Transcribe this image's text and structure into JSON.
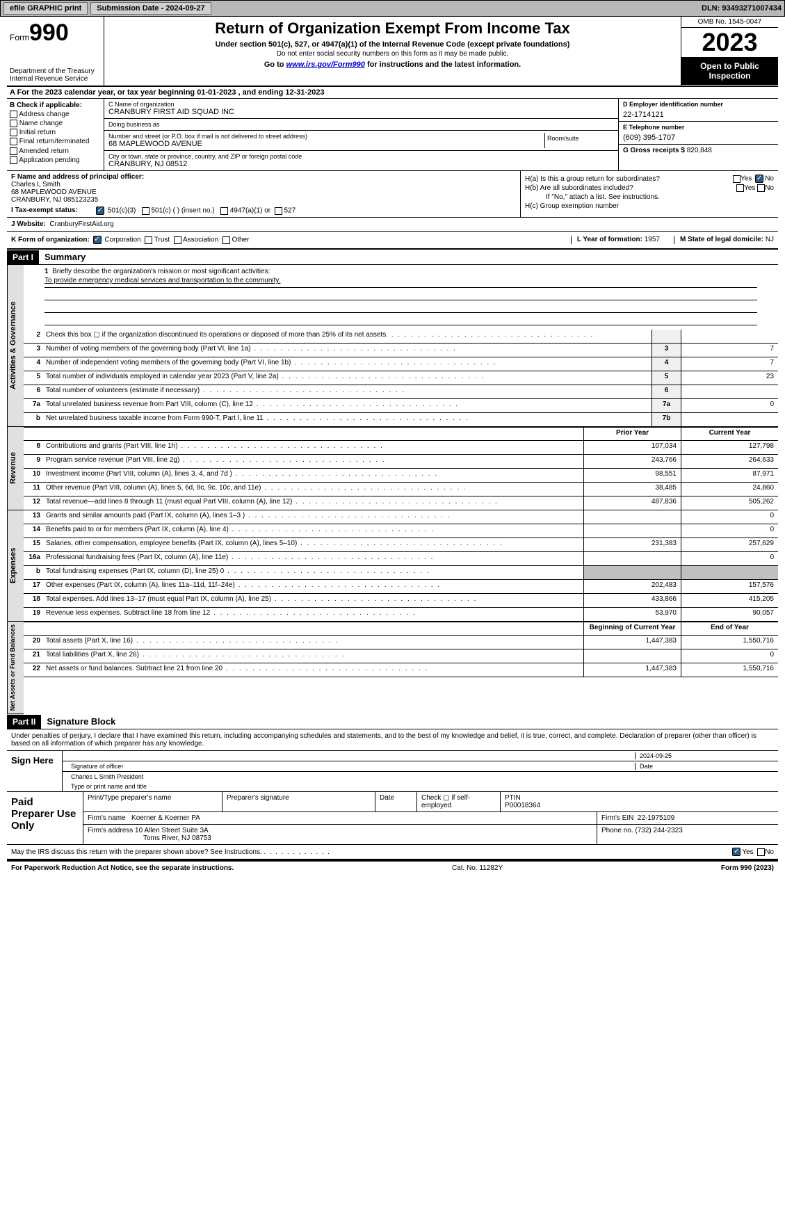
{
  "topbar": {
    "efile": "efile GRAPHIC print",
    "sub_label": "Submission Date - 2024-09-27",
    "dln": "DLN: 93493271007434"
  },
  "header": {
    "form_label": "Form",
    "form_no": "990",
    "dept": "Department of the Treasury\nInternal Revenue Service",
    "title": "Return of Organization Exempt From Income Tax",
    "subtitle": "Under section 501(c), 527, or 4947(a)(1) of the Internal Revenue Code (except private foundations)",
    "note": "Do not enter social security numbers on this form as it may be made public.",
    "goto_pre": "Go to ",
    "goto_link": "www.irs.gov/Form990",
    "goto_post": " for instructions and the latest information.",
    "omb": "OMB No. 1545-0047",
    "year": "2023",
    "open": "Open to Public Inspection"
  },
  "row_a": "A For the 2023 calendar year, or tax year beginning 01-01-2023   , and ending 12-31-2023",
  "section_b": {
    "title": "B Check if applicable:",
    "opts": [
      "Address change",
      "Name change",
      "Initial return",
      "Final return/terminated",
      "Amended return",
      "Application pending"
    ]
  },
  "section_c": {
    "name_lbl": "C Name of organization",
    "name": "CRANBURY FIRST AID SQUAD INC",
    "dba_lbl": "Doing business as",
    "dba": "",
    "addr_lbl": "Number and street (or P.O. box if mail is not delivered to street address)",
    "addr": "68 MAPLEWOOD AVENUE",
    "room_lbl": "Room/suite",
    "city_lbl": "City or town, state or province, country, and ZIP or foreign postal code",
    "city": "CRANBURY, NJ  08512"
  },
  "section_d": {
    "lbl": "D Employer identification number",
    "val": "22-1714121"
  },
  "section_e": {
    "lbl": "E Telephone number",
    "val": "(609) 395-1707"
  },
  "section_g": {
    "lbl": "G Gross receipts $",
    "val": "820,848"
  },
  "section_f": {
    "lbl": "F  Name and address of principal officer:",
    "name": "Charles L Smith",
    "addr1": "68 MAPLEWOOD AVENUE",
    "addr2": "CRANBURY, NJ  085123235"
  },
  "section_h": {
    "a_lbl": "H(a)  Is this a group return for subordinates?",
    "b_lbl": "H(b)  Are all subordinates included?",
    "b_note": "If \"No,\" attach a list. See instructions.",
    "c_lbl": "H(c)  Group exemption number"
  },
  "section_i": {
    "lbl": "I  Tax-exempt status:",
    "o1": "501(c)(3)",
    "o2": "501(c) (  ) (insert no.)",
    "o3": "4947(a)(1) or",
    "o4": "527"
  },
  "section_j": {
    "lbl": "J  Website:",
    "val": "CranburyFirstAid.org"
  },
  "section_k": {
    "lbl": "K Form of organization:",
    "o1": "Corporation",
    "o2": "Trust",
    "o3": "Association",
    "o4": "Other"
  },
  "section_l": {
    "lbl": "L Year of formation:",
    "val": "1957"
  },
  "section_m": {
    "lbl": "M State of legal domicile:",
    "val": "NJ"
  },
  "part1": {
    "hdr": "Part I",
    "title": "Summary"
  },
  "mission": {
    "num": "1",
    "lbl": "Briefly describe the organization's mission or most significant activities:",
    "text": "To provide emergency medical services and transportation to the community."
  },
  "lines_gov": [
    {
      "n": "2",
      "d": "Check this box ▢ if the organization discontinued its operations or disposed of more than 25% of its net assets.",
      "box": "",
      "v": ""
    },
    {
      "n": "3",
      "d": "Number of voting members of the governing body (Part VI, line 1a)",
      "box": "3",
      "v": "7"
    },
    {
      "n": "4",
      "d": "Number of independent voting members of the governing body (Part VI, line 1b)",
      "box": "4",
      "v": "7"
    },
    {
      "n": "5",
      "d": "Total number of individuals employed in calendar year 2023 (Part V, line 2a)",
      "box": "5",
      "v": "23"
    },
    {
      "n": "6",
      "d": "Total number of volunteers (estimate if necessary)",
      "box": "6",
      "v": ""
    },
    {
      "n": "7a",
      "d": "Total unrelated business revenue from Part VIII, column (C), line 12",
      "box": "7a",
      "v": "0"
    },
    {
      "n": "b",
      "d": "Net unrelated business taxable income from Form 990-T, Part I, line 11",
      "box": "7b",
      "v": ""
    }
  ],
  "rev_hdr": {
    "prior": "Prior Year",
    "curr": "Current Year"
  },
  "lines_rev": [
    {
      "n": "8",
      "d": "Contributions and grants (Part VIII, line 1h)",
      "p": "107,034",
      "c": "127,798"
    },
    {
      "n": "9",
      "d": "Program service revenue (Part VIII, line 2g)",
      "p": "243,766",
      "c": "264,633"
    },
    {
      "n": "10",
      "d": "Investment income (Part VIII, column (A), lines 3, 4, and 7d )",
      "p": "98,551",
      "c": "87,971"
    },
    {
      "n": "11",
      "d": "Other revenue (Part VIII, column (A), lines 5, 6d, 8c, 9c, 10c, and 11e)",
      "p": "38,485",
      "c": "24,860"
    },
    {
      "n": "12",
      "d": "Total revenue—add lines 8 through 11 (must equal Part VIII, column (A), line 12)",
      "p": "487,836",
      "c": "505,262"
    }
  ],
  "lines_exp": [
    {
      "n": "13",
      "d": "Grants and similar amounts paid (Part IX, column (A), lines 1–3 )",
      "p": "",
      "c": "0"
    },
    {
      "n": "14",
      "d": "Benefits paid to or for members (Part IX, column (A), line 4)",
      "p": "",
      "c": "0"
    },
    {
      "n": "15",
      "d": "Salaries, other compensation, employee benefits (Part IX, column (A), lines 5–10)",
      "p": "231,383",
      "c": "257,629"
    },
    {
      "n": "16a",
      "d": "Professional fundraising fees (Part IX, column (A), line 11e)",
      "p": "",
      "c": "0"
    },
    {
      "n": "b",
      "d": "Total fundraising expenses (Part IX, column (D), line 25) 0",
      "p": "shaded",
      "c": "shaded"
    },
    {
      "n": "17",
      "d": "Other expenses (Part IX, column (A), lines 11a–11d, 11f–24e)",
      "p": "202,483",
      "c": "157,576"
    },
    {
      "n": "18",
      "d": "Total expenses. Add lines 13–17 (must equal Part IX, column (A), line 25)",
      "p": "433,866",
      "c": "415,205"
    },
    {
      "n": "19",
      "d": "Revenue less expenses. Subtract line 18 from line 12",
      "p": "53,970",
      "c": "90,057"
    }
  ],
  "net_hdr": {
    "prior": "Beginning of Current Year",
    "curr": "End of Year"
  },
  "lines_net": [
    {
      "n": "20",
      "d": "Total assets (Part X, line 16)",
      "p": "1,447,383",
      "c": "1,550,716"
    },
    {
      "n": "21",
      "d": "Total liabilities (Part X, line 26)",
      "p": "",
      "c": "0"
    },
    {
      "n": "22",
      "d": "Net assets or fund balances. Subtract line 21 from line 20",
      "p": "1,447,383",
      "c": "1,550,716"
    }
  ],
  "part2": {
    "hdr": "Part II",
    "title": "Signature Block"
  },
  "sig_intro": "Under penalties of perjury, I declare that I have examined this return, including accompanying schedules and statements, and to the best of my knowledge and belief, it is true, correct, and complete. Declaration of preparer (other than officer) is based on all information of which preparer has any knowledge.",
  "sign": {
    "lbl": "Sign Here",
    "officer_sig": "Signature of officer",
    "date": "2024-09-25",
    "date_lbl": "Date",
    "officer_name": "Charles L Smith  President",
    "name_lbl": "Type or print name and title"
  },
  "prep": {
    "lbl": "Paid Preparer Use Only",
    "h1": "Print/Type preparer's name",
    "h2": "Preparer's signature",
    "h3": "Date",
    "h4": "Check ▢ if self-employed",
    "h5": "PTIN",
    "ptin": "P00018364",
    "firm_lbl": "Firm's name",
    "firm": "Koerner & Koerner PA",
    "ein_lbl": "Firm's EIN",
    "ein": "22-1975109",
    "addr_lbl": "Firm's address",
    "addr1": "10 Allen Street Suite 3A",
    "addr2": "Toms River, NJ  08753",
    "phone_lbl": "Phone no.",
    "phone": "(732) 244-2323"
  },
  "discuss": "May the IRS discuss this return with the preparer shown above? See Instructions.",
  "footer": {
    "left": "For Paperwork Reduction Act Notice, see the separate instructions.",
    "mid": "Cat. No. 11282Y",
    "right": "Form 990 (2023)"
  },
  "yesno": {
    "yes": "Yes",
    "no": "No"
  },
  "vtabs": {
    "gov": "Activities & Governance",
    "rev": "Revenue",
    "exp": "Expenses",
    "net": "Net Assets or Fund Balances"
  }
}
